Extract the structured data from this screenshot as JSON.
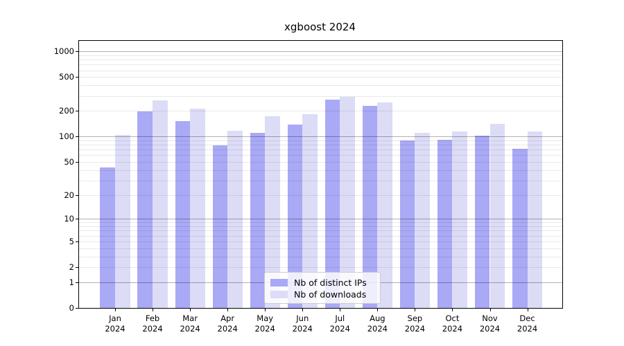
{
  "title": "xgboost 2024",
  "legend": {
    "ips_label": "Nb of distinct IPs",
    "downloads_label": "Nb of downloads"
  },
  "colors": {
    "ips_bar": "#a9a9f5",
    "downloads_bar": "#dcdcf7",
    "major_gridline": "#b0b0b0",
    "minor_gridline": "#e9e9e9",
    "axis": "#000000"
  },
  "y_axis": {
    "tick_labels": [
      "1000",
      "500",
      "200",
      "100",
      "50",
      "20",
      "10",
      "5",
      "2",
      "1",
      "0"
    ],
    "tick_values": [
      1000,
      500,
      200,
      100,
      50,
      20,
      10,
      5,
      2,
      1,
      0
    ],
    "minor_gridline_values": [
      2,
      3,
      4,
      5,
      6,
      7,
      8,
      9,
      20,
      30,
      40,
      50,
      60,
      70,
      80,
      90,
      200,
      300,
      400,
      500,
      600,
      700,
      800,
      900
    ],
    "major_gridline_values": [
      1,
      10,
      100,
      1000
    ]
  },
  "x_axis": {
    "year": "2024",
    "months": [
      "Jan",
      "Feb",
      "Mar",
      "Apr",
      "May",
      "Jun",
      "Jul",
      "Aug",
      "Sep",
      "Oct",
      "Nov",
      "Dec"
    ]
  },
  "chart_data": {
    "type": "bar",
    "title": "xgboost 2024",
    "xlabel": "",
    "ylabel": "",
    "yscale": "log1p",
    "ylim": [
      0,
      1327
    ],
    "grid": "both",
    "legend_position": "lower center",
    "categories": [
      "Jan 2024",
      "Feb 2024",
      "Mar 2024",
      "Apr 2024",
      "May 2024",
      "Jun 2024",
      "Jul 2024",
      "Aug 2024",
      "Sep 2024",
      "Oct 2024",
      "Nov 2024",
      "Dec 2024"
    ],
    "series": [
      {
        "name": "Nb of distinct IPs",
        "values": [
          43,
          197,
          153,
          78,
          111,
          138,
          272,
          231,
          90,
          92,
          102,
          72
        ]
      },
      {
        "name": "Nb of downloads",
        "values": [
          105,
          268,
          214,
          117,
          174,
          184,
          295,
          254,
          110,
          114,
          141,
          115
        ]
      }
    ]
  }
}
